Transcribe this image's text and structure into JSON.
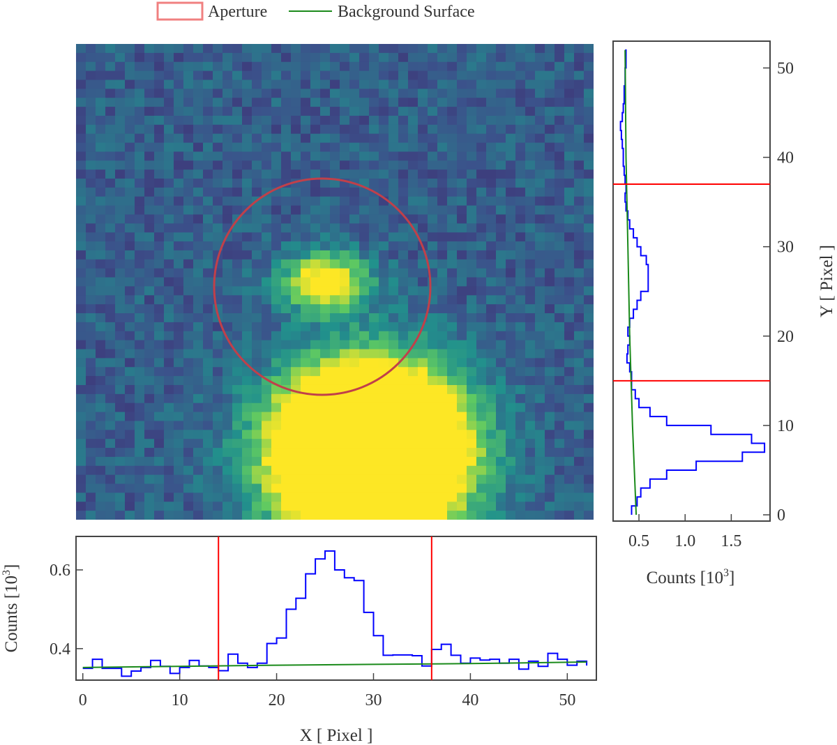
{
  "legend": {
    "aperture_label": "Aperture",
    "background_label": "Background Surface"
  },
  "colors": {
    "aperture": "#f08080",
    "aperture_ring": "#c0404a",
    "profile": "#0000ff",
    "background": "#1a8a1a",
    "bounds": "#ff0000",
    "frame": "#444444"
  },
  "chart_data": [
    {
      "type": "heatmap",
      "name": "cutout",
      "colormap": "viridis",
      "x_range": [
        0,
        52
      ],
      "y_range": [
        0,
        52
      ],
      "sources": [
        {
          "x": 25,
          "y": 26,
          "description": "target"
        },
        {
          "x": 29.5,
          "y": 7,
          "description": "bright neighbour"
        }
      ],
      "aperture": {
        "cx": 25,
        "cy": 26,
        "radius": 11
      }
    },
    {
      "type": "line",
      "name": "x-profile",
      "xlabel": "X [ Pixel ]",
      "ylabel": "Counts [10",
      "ylabel_sup": "3",
      "ylabel_tail": "]",
      "xlim": [
        -0.7,
        53
      ],
      "ylim": [
        0.32,
        0.685
      ],
      "xticks": [
        0,
        10,
        20,
        30,
        40,
        50
      ],
      "yticks": [
        0.4,
        0.6
      ],
      "ytick_labels": [
        "0.4",
        "0.6"
      ],
      "aperture_bounds": [
        14,
        36
      ],
      "series": [
        {
          "name": "profile",
          "step": true,
          "x": [
            0,
            1,
            2,
            3,
            4,
            5,
            6,
            7,
            8,
            9,
            10,
            11,
            12,
            13,
            14,
            15,
            16,
            17,
            18,
            19,
            20,
            21,
            22,
            23,
            24,
            25,
            26,
            27,
            28,
            29,
            30,
            31,
            32,
            33,
            34,
            35,
            36,
            37,
            38,
            39,
            40,
            41,
            42,
            43,
            44,
            45,
            46,
            47,
            48,
            49,
            50,
            51,
            52
          ],
          "y": [
            0.35,
            0.373,
            0.35,
            0.35,
            0.33,
            0.343,
            0.352,
            0.37,
            0.355,
            0.337,
            0.352,
            0.37,
            0.356,
            0.352,
            0.344,
            0.386,
            0.363,
            0.352,
            0.363,
            0.413,
            0.427,
            0.5,
            0.528,
            0.59,
            0.628,
            0.648,
            0.6,
            0.58,
            0.573,
            0.492,
            0.433,
            0.383,
            0.384,
            0.384,
            0.382,
            0.356,
            0.398,
            0.411,
            0.383,
            0.363,
            0.376,
            0.371,
            0.373,
            0.363,
            0.373,
            0.348,
            0.368,
            0.355,
            0.388,
            0.373,
            0.358,
            0.368,
            0.357
          ]
        },
        {
          "name": "background",
          "x": [
            0,
            10,
            20,
            30,
            40,
            52
          ],
          "y": [
            0.352,
            0.355,
            0.358,
            0.36,
            0.362,
            0.366
          ]
        }
      ]
    },
    {
      "type": "line",
      "name": "y-profile",
      "xlabel": "Counts [10",
      "xlabel_sup": "3",
      "xlabel_tail": "]",
      "ylabel": "Y [ Pixel ]",
      "xlim": [
        0.22,
        1.92
      ],
      "ylim": [
        -0.7,
        53
      ],
      "xticks": [
        0.5,
        1.0,
        1.5
      ],
      "xtick_labels": [
        "0.5",
        "1.0",
        "1.5"
      ],
      "yticks": [
        0,
        10,
        20,
        30,
        40,
        50
      ],
      "aperture_bounds": [
        15,
        37
      ],
      "series": [
        {
          "name": "profile",
          "step": true,
          "y": [
            0,
            1,
            2,
            3,
            4,
            5,
            6,
            7,
            8,
            9,
            10,
            11,
            12,
            13,
            14,
            15,
            16,
            17,
            18,
            19,
            20,
            21,
            22,
            23,
            24,
            25,
            26,
            27,
            28,
            29,
            30,
            31,
            32,
            33,
            34,
            35,
            36,
            37,
            38,
            39,
            40,
            41,
            42,
            43,
            44,
            45,
            46,
            47,
            48,
            49,
            50,
            51,
            52
          ],
          "x": [
            0.42,
            0.48,
            0.52,
            0.62,
            0.8,
            1.12,
            1.62,
            1.86,
            1.72,
            1.28,
            0.8,
            0.62,
            0.5,
            0.46,
            0.42,
            0.42,
            0.4,
            0.37,
            0.38,
            0.4,
            0.38,
            0.4,
            0.44,
            0.48,
            0.52,
            0.6,
            0.6,
            0.6,
            0.58,
            0.52,
            0.48,
            0.44,
            0.4,
            0.38,
            0.36,
            0.35,
            0.36,
            0.35,
            0.34,
            0.33,
            0.33,
            0.32,
            0.31,
            0.3,
            0.32,
            0.33,
            0.34,
            0.34,
            0.35,
            0.35,
            0.36,
            0.36,
            0.35
          ]
        },
        {
          "name": "background",
          "y": [
            0,
            10,
            20,
            30,
            40,
            52
          ],
          "x": [
            0.47,
            0.43,
            0.4,
            0.38,
            0.36,
            0.35
          ]
        }
      ]
    }
  ]
}
